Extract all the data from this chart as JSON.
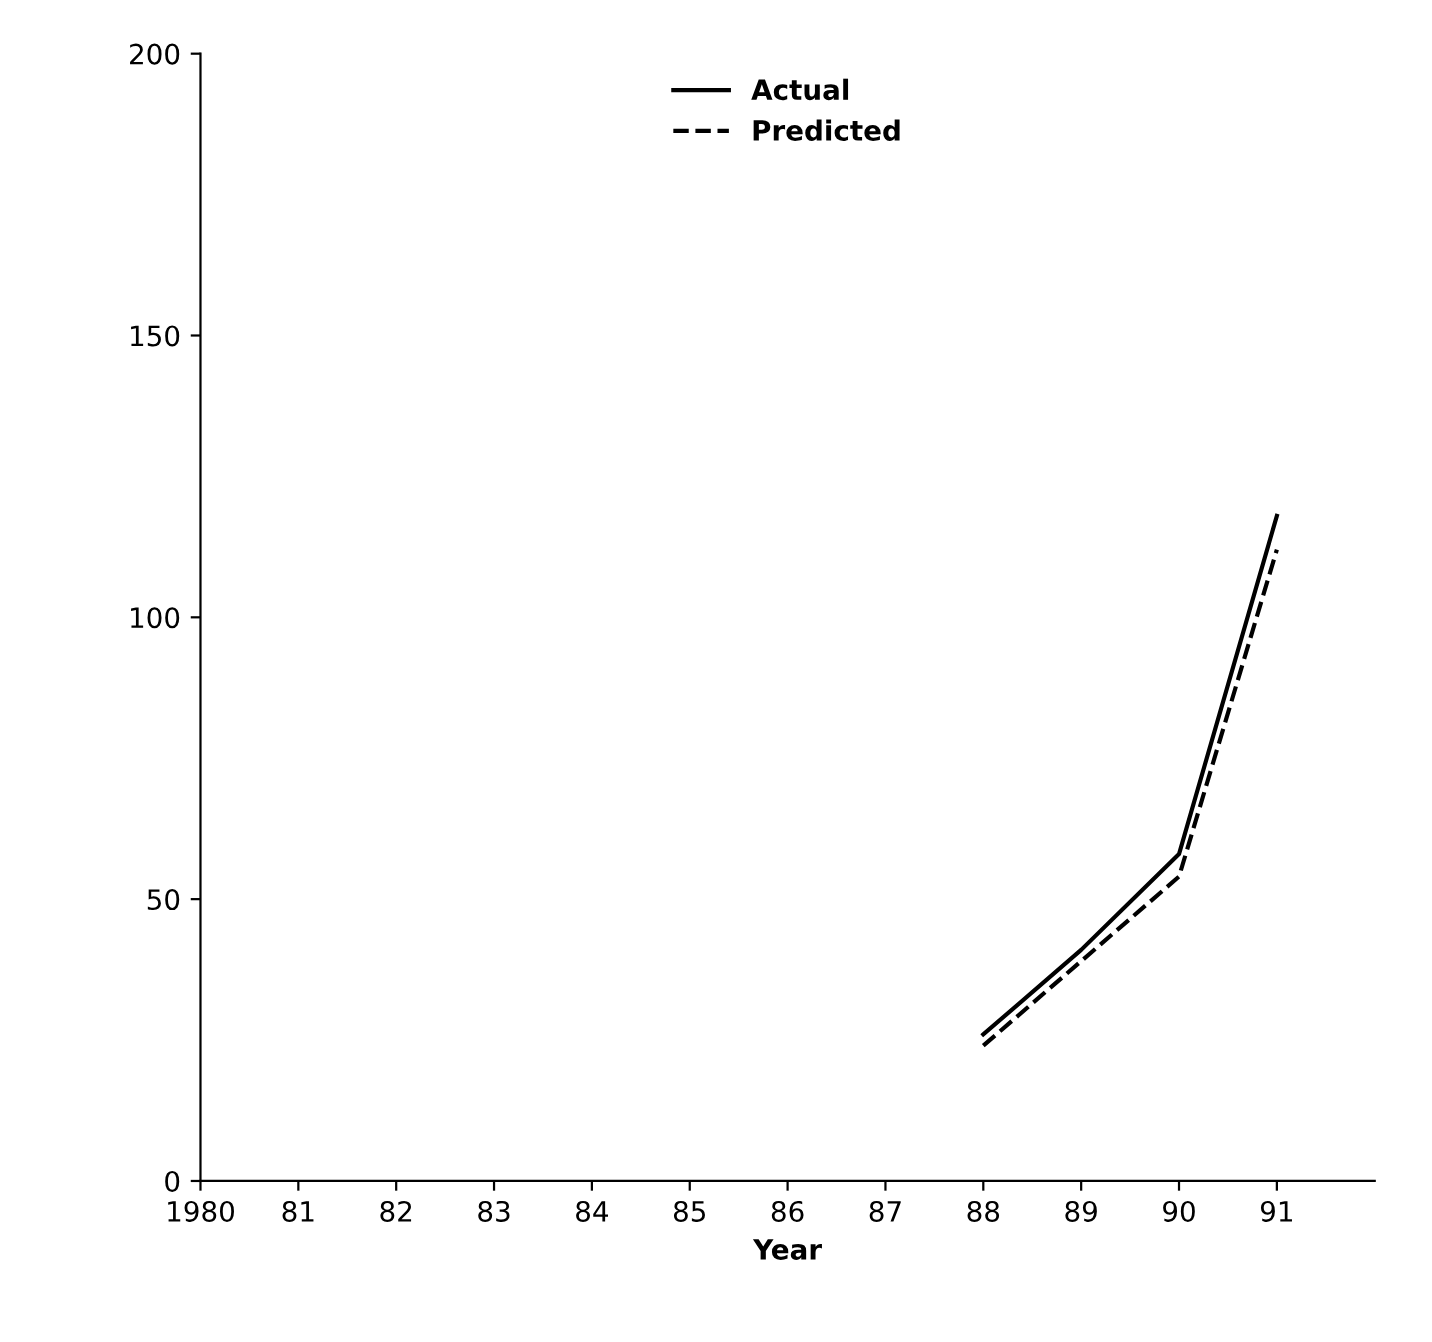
{
  "chart_data": {
    "type": "line",
    "xlabel": "Year",
    "x": [
      1988,
      1989,
      1990,
      1991
    ],
    "series": [
      {
        "name": "Actual",
        "color": "#000000",
        "line_style": "solid",
        "values": [
          26,
          41,
          58,
          118
        ]
      },
      {
        "name": "Predicted",
        "color": "#000000",
        "line_style": "dashed",
        "values": [
          24,
          39,
          54,
          112
        ]
      }
    ],
    "xlim": [
      1980,
      1992
    ],
    "ylim": [
      0,
      200
    ],
    "xticks": [
      1980,
      {
        "value": 1981,
        "label": "81"
      },
      {
        "value": 1982,
        "label": "82"
      },
      {
        "value": 1983,
        "label": "83"
      },
      {
        "value": 1984,
        "label": "84"
      },
      {
        "value": 1985,
        "label": "85"
      },
      {
        "value": 1986,
        "label": "86"
      },
      {
        "value": 1987,
        "label": "87"
      },
      {
        "value": 1988,
        "label": "88"
      },
      {
        "value": 1989,
        "label": "89"
      },
      {
        "value": 1990,
        "label": "90"
      },
      {
        "value": 1991,
        "label": "91"
      }
    ],
    "yticks": [
      0,
      50,
      100,
      150,
      200
    ],
    "grid": false,
    "legend": "top",
    "marker": "none"
  }
}
